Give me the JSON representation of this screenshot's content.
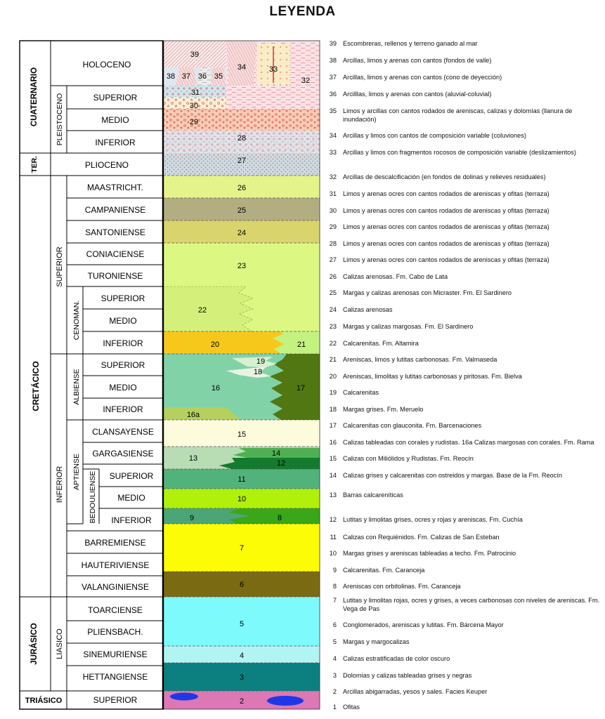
{
  "title": "LEYENDA",
  "systems": [
    {
      "id": "cuaternario",
      "label": "CUATERNARIO"
    },
    {
      "id": "terciario",
      "label": "TER."
    },
    {
      "id": "cretacico",
      "label": "CRETÁCICO"
    },
    {
      "id": "jurasico",
      "label": "JURÁSICO"
    },
    {
      "id": "triasico",
      "label": "TRIÁSICO"
    }
  ],
  "series": [
    {
      "id": "pleistoceno",
      "label": "PLEISTOCENO"
    },
    {
      "id": "cret-superior",
      "label": "SUPERIOR"
    },
    {
      "id": "cret-inferior",
      "label": "INFERIOR"
    },
    {
      "id": "liasico",
      "label": "LIASICO"
    }
  ],
  "subseries": [
    {
      "id": "cenomanense",
      "label": "CENOMAN."
    },
    {
      "id": "albiense",
      "label": "ALBIENSE"
    },
    {
      "id": "aptiense",
      "label": "APTIENSE"
    },
    {
      "id": "bedouliense",
      "label": "BEDOULIENSE"
    }
  ],
  "stages": [
    {
      "id": "holoceno",
      "label": "HOLOCENO"
    },
    {
      "id": "pleist-superior",
      "label": "SUPERIOR"
    },
    {
      "id": "pleist-medio",
      "label": "MEDIO"
    },
    {
      "id": "pleist-inferior",
      "label": "INFERIOR"
    },
    {
      "id": "plioceno",
      "label": "PLIOCENO"
    },
    {
      "id": "maastricht",
      "label": "MAASTRICHT."
    },
    {
      "id": "campaniense",
      "label": "CAMPANIENSE"
    },
    {
      "id": "santoniense",
      "label": "SANTONIENSE"
    },
    {
      "id": "coniaciense",
      "label": "CONIACIENSE"
    },
    {
      "id": "turoniense",
      "label": "TURONIENSE"
    },
    {
      "id": "cenoman-superior",
      "label": "SUPERIOR"
    },
    {
      "id": "cenoman-medio",
      "label": "MEDIO"
    },
    {
      "id": "cenoman-inferior",
      "label": "INFERIOR"
    },
    {
      "id": "albiense-superior",
      "label": "SUPERIOR"
    },
    {
      "id": "albiense-medio",
      "label": "MEDIO"
    },
    {
      "id": "albiense-inferior",
      "label": "INFERIOR"
    },
    {
      "id": "clansayense",
      "label": "CLANSAYENSE"
    },
    {
      "id": "gargasiense",
      "label": "GARGASIENSE"
    },
    {
      "id": "bedoul-superior",
      "label": "SUPERIOR"
    },
    {
      "id": "bedoul-medio",
      "label": "MEDIO"
    },
    {
      "id": "bedoul-inferior",
      "label": "INFERIOR"
    },
    {
      "id": "barremiense",
      "label": "BARREMIENSE"
    },
    {
      "id": "hauteriviense",
      "label": "HAUTERIVIENSE"
    },
    {
      "id": "valanginiense",
      "label": "VALANGINIENSE"
    },
    {
      "id": "toarciense",
      "label": "TOARCIENSE"
    },
    {
      "id": "pliensbach",
      "label": "PLIENSBACH."
    },
    {
      "id": "sinemuriense",
      "label": "SINEMURIENSE"
    },
    {
      "id": "hettangiense",
      "label": "HETTANGIENSE"
    },
    {
      "id": "triasico-superior",
      "label": "SUPERIOR"
    }
  ],
  "unit_labels": [
    "39",
    "38",
    "37",
    "36",
    "35",
    "34",
    "33",
    "32",
    "31",
    "30",
    "29",
    "28",
    "27",
    "26",
    "25",
    "24",
    "23",
    "22",
    "20",
    "21",
    "19",
    "18",
    "16",
    "17",
    "16a",
    "15",
    "14",
    "13",
    "12",
    "11",
    "10",
    "9",
    "8",
    "7",
    "6",
    "5",
    "4",
    "3",
    "2"
  ],
  "colors": {
    "u26": "#e4f48a",
    "u25": "#b3ad82",
    "u24": "#d9d56c",
    "u23": "#dcf882",
    "u22": "#dcf882",
    "u20": "#f7c81c",
    "u21": "#c4f27e",
    "u16": "#82d2a8",
    "u17": "#507712",
    "u16a": "#b4d05e",
    "u15": "#fcfcdc",
    "u13": "#b8dcb4",
    "u14": "#4eb052",
    "u12": "#147a2e",
    "u11": "#52b27c",
    "u10": "#b0f00a",
    "u9": "#4aa676",
    "u8": "#3aa61a",
    "u7": "#fcfc06",
    "u6": "#7a6a12",
    "u5": "#7cfafc",
    "u4": "#b2f4f4",
    "u3": "#0c8080",
    "u2": "#dc78b4",
    "ophite": "#2038e4"
  },
  "legend": [
    {
      "num": "39",
      "text": "Escombreras, rellenos y terreno ganado al mar"
    },
    {
      "num": "38",
      "text": "Arcillas, limos y arenas con cantos (fondos de valle)"
    },
    {
      "num": "37",
      "text": "Arcillas, limos y arenas con cantos (cono de deyección)"
    },
    {
      "num": "36",
      "text": "Arcilllas, limos y arenas con cantos (aluvial-coluvial)"
    },
    {
      "num": "35",
      "text": "Limos y arcillas con cantos rodados de areniscas, calizas y dolomías (llanura de inundación)"
    },
    {
      "num": "34",
      "text": "Arcillas y limos con cantos de composición variable (coluviones)"
    },
    {
      "num": "33",
      "text": "Arcillas y limos con fragmentos rocosos de composición variable (deslizamientos)"
    },
    {
      "num": "32",
      "text": "Arcillas de descalcificación (en fondos de dolinas y relieves residuales)"
    },
    {
      "num": "31",
      "text": "Limos y arenas ocres con cantos rodados de areniscas y ofitas (terraza)"
    },
    {
      "num": "30",
      "text": "Limos y arenas ocres con cantos rodados de areniscas y ofitas (terraza)"
    },
    {
      "num": "29",
      "text": "Limos y arenas ocres con cantos rodados de areniscas y ofitas (terraza)"
    },
    {
      "num": "28",
      "text": "Limos y arenas ocres con cantos rodados de areniscas y ofitas (terraza)"
    },
    {
      "num": "27",
      "text": "Limos y arenas ocres con cantos rodados de areniscas y ofitas (terraza)"
    },
    {
      "num": "26",
      "text": "Calizas arenosas. Fm. Cabo de Lata"
    },
    {
      "num": "25",
      "text": "Margas y calizas arenosas con Micraster. Fm. El Sardinero"
    },
    {
      "num": "24",
      "text": "Calizas arenosas"
    },
    {
      "num": "23",
      "text": "Margas y calizas margosas. Fm. El Sardinero"
    },
    {
      "num": "22",
      "text": "Calcarenitas. Fm. Altamira"
    },
    {
      "num": "21",
      "text": "Areniscas, limos y lutitas carbonosas. Fm. Valmaseda"
    },
    {
      "num": "20",
      "text": "Areniscas, limolitas y lutitas carbonosas y piritosas. Fm. Bielva"
    },
    {
      "num": "19",
      "text": "Calcarenitas"
    },
    {
      "num": "18",
      "text": "Margas grises. Fm. Meruelo"
    },
    {
      "num": "17",
      "text": "Calcarenitas con glauconita. Fm. Barcenaciones"
    },
    {
      "num": "16",
      "text": "Calizas tableadas con corales y rudistas. 16a Calizas margosas con corales. Fm. Rama"
    },
    {
      "num": "15",
      "text": "Calizas con Miliólidos y Rudistas. Fm. Reocín"
    },
    {
      "num": "14",
      "text": "Calizas grises y calcarenitas con ostreidos y margas. Base de la Fm. Reocín"
    },
    {
      "num": "13",
      "text": "Barras calcareníticas"
    },
    {
      "num": "12",
      "text": "Lutitas y limolitas grises, ocres y rojas y areniscas. Fm. Cuchía"
    },
    {
      "num": "11",
      "text": "Calizas con Requiénidos. Fm. Calizas de San Esteban"
    },
    {
      "num": "10",
      "text": "Margas grises y areniscas tableadas a techo. Fm. Patrocinio"
    },
    {
      "num": "9",
      "text": "Calcarenitas. Fm. Caranceja"
    },
    {
      "num": "8",
      "text": "Areniscas con orbitolinas. Fm. Caranceja"
    },
    {
      "num": "7",
      "text": "Lutitas y limolitas rojas, ocres y grises, a veces carbonosas con niveles de areniscas. Fm. Vega de Pas"
    },
    {
      "num": "6",
      "text": "Conglomerados, areniscas y lutitas. Fm. Bárcena Mayor"
    },
    {
      "num": "5",
      "text": "Margas y margocalizas"
    },
    {
      "num": "4",
      "text": "Calizas estratificadas de color oscuro"
    },
    {
      "num": "3",
      "text": "Dolomias y calizas tableadas grises y negras"
    },
    {
      "num": "2",
      "text": "Arcillas abigarradas, yesos y sales. Facies Keuper"
    },
    {
      "num": "1",
      "text": "Ofitas"
    }
  ]
}
